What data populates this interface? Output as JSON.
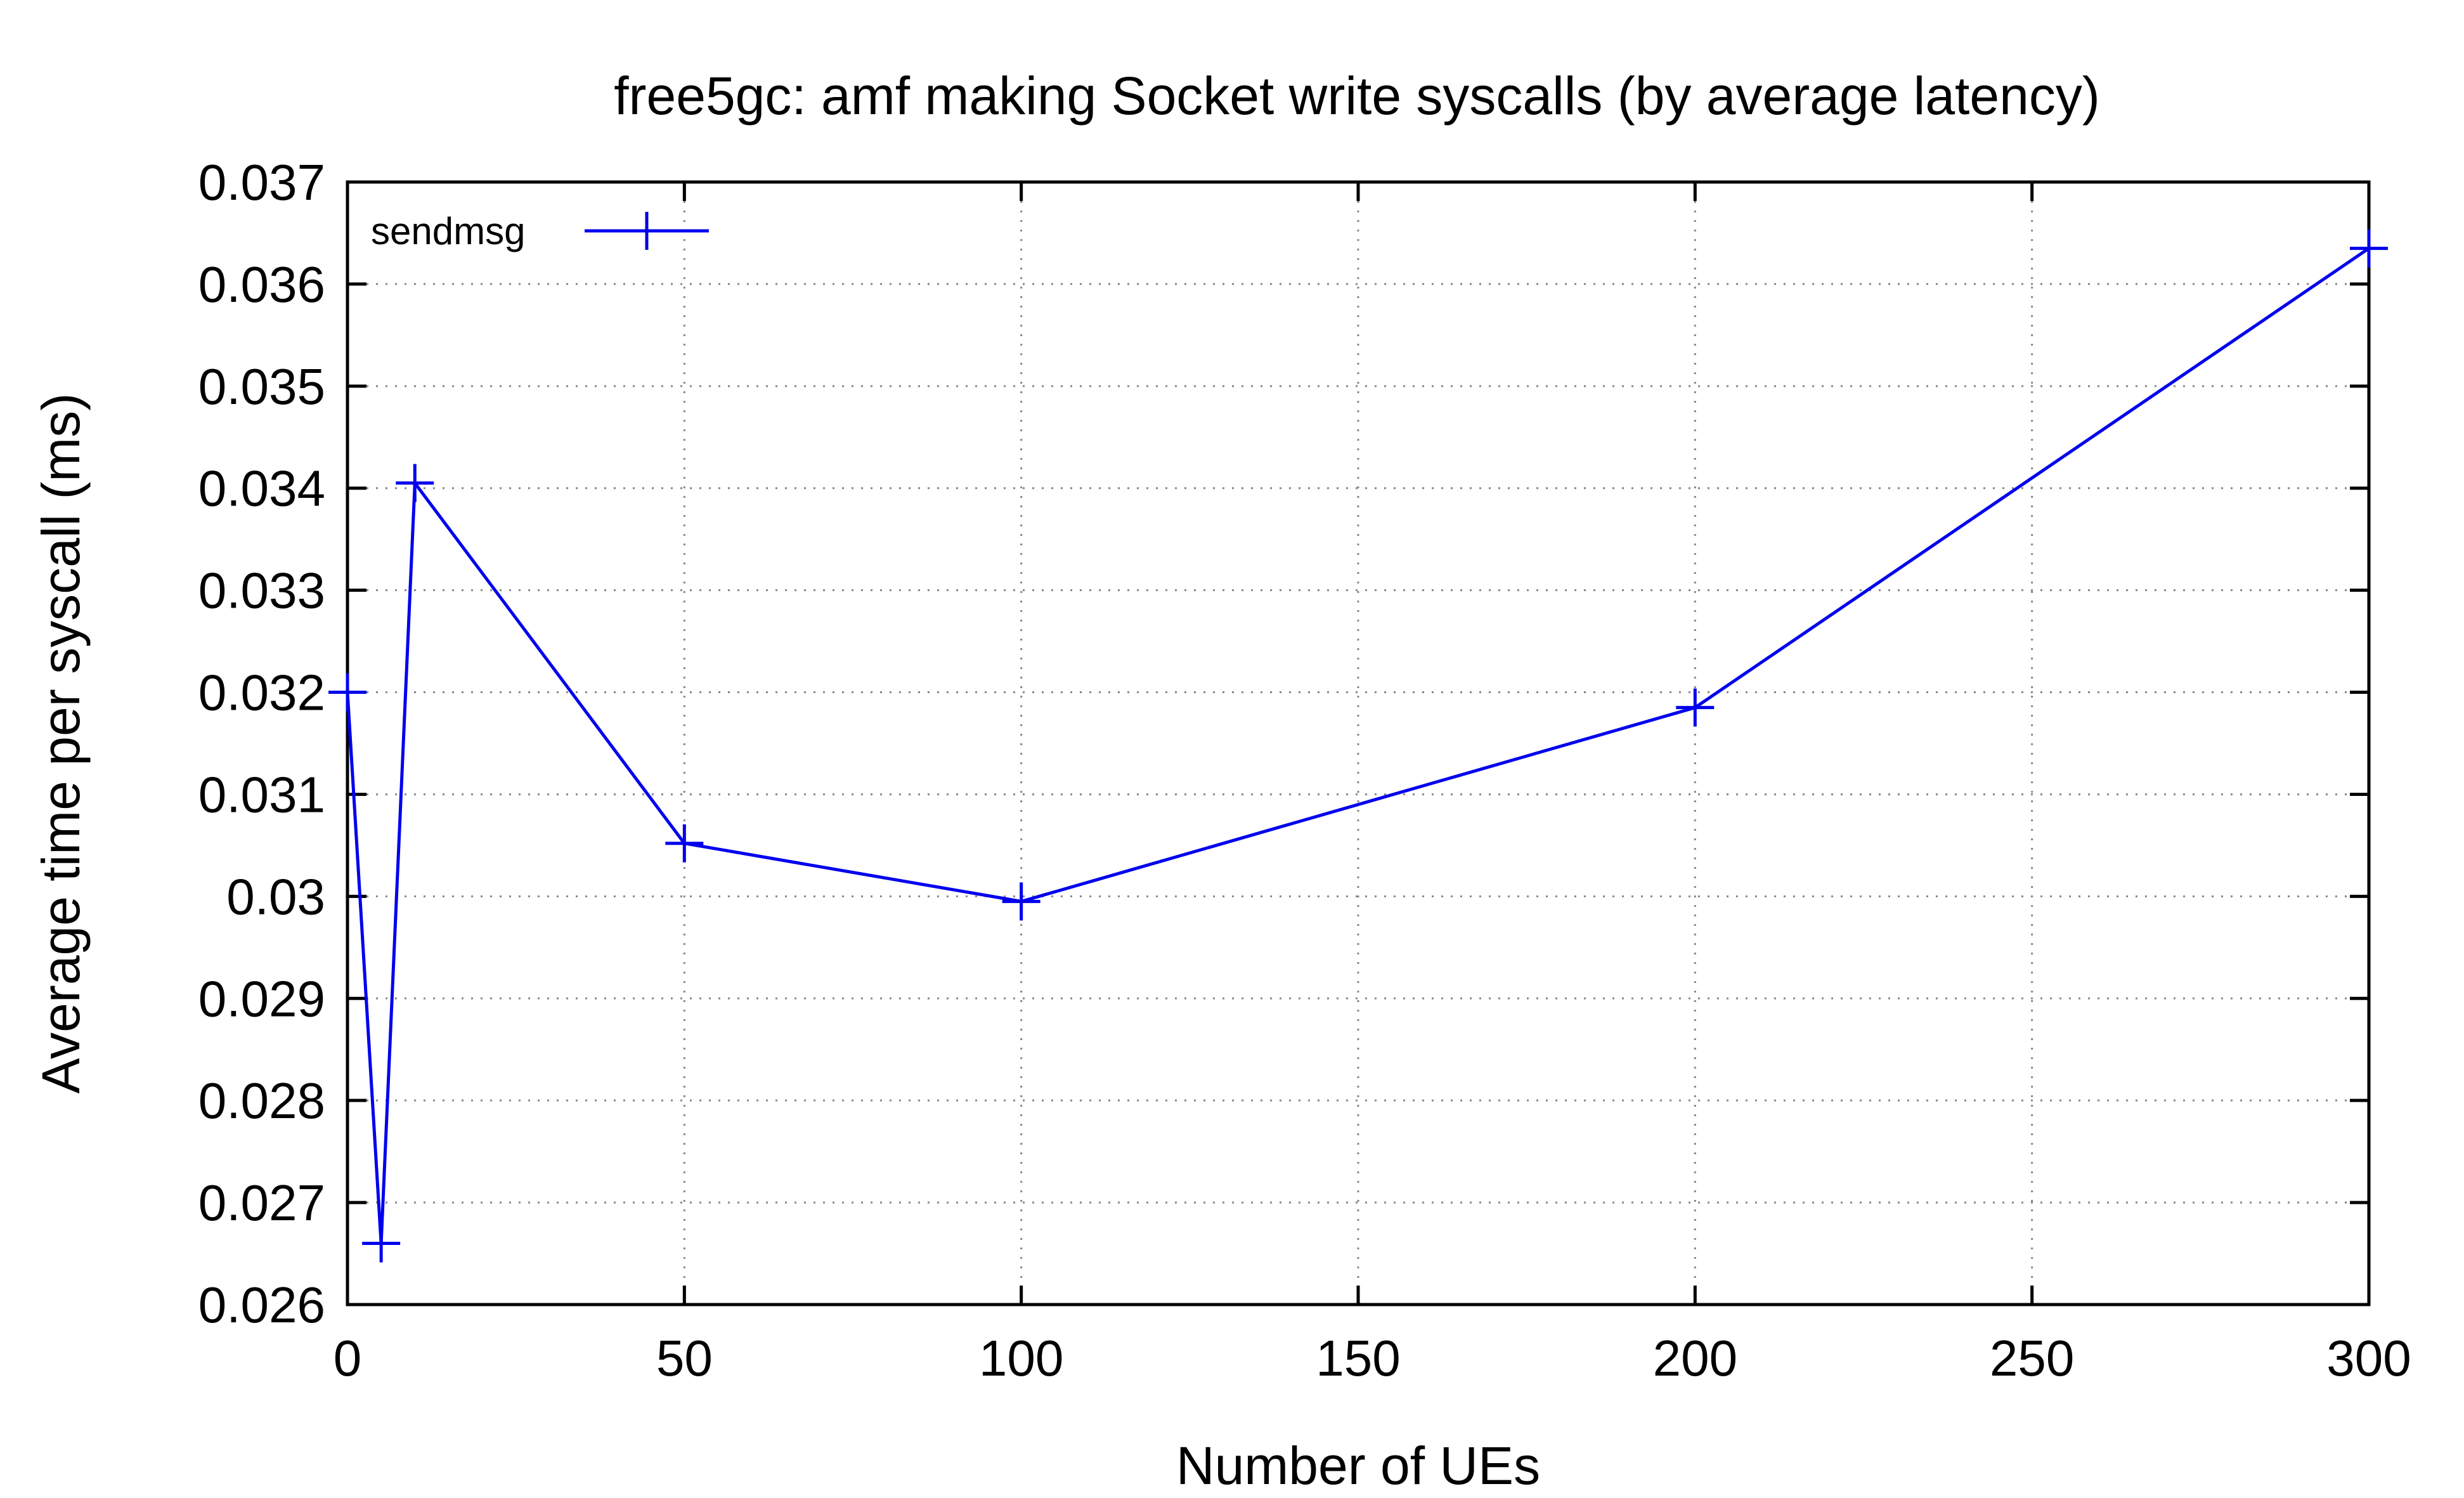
{
  "chart_data": {
    "type": "line",
    "title": "free5gc: amf making Socket write syscalls (by average latency)",
    "xlabel": "Number of UEs",
    "ylabel": "Average time per syscall (ms)",
    "xlim": [
      0,
      300
    ],
    "ylim": [
      0.026,
      0.037
    ],
    "xticks": [
      "0",
      "50",
      "100",
      "150",
      "200",
      "250",
      "300"
    ],
    "yticks": [
      "0.026",
      "0.027",
      "0.028",
      "0.029",
      "0.03",
      "0.031",
      "0.032",
      "0.033",
      "0.034",
      "0.035",
      "0.036",
      "0.037"
    ],
    "grid": true,
    "legend_position": "top-left",
    "series": [
      {
        "name": "sendmsg",
        "color": "#0000ee",
        "marker": "plus",
        "x": [
          0,
          5,
          10,
          50,
          100,
          200,
          300
        ],
        "y": [
          0.032,
          0.0266,
          0.03405,
          0.03052,
          0.02995,
          0.03185,
          0.03635
        ]
      }
    ]
  }
}
